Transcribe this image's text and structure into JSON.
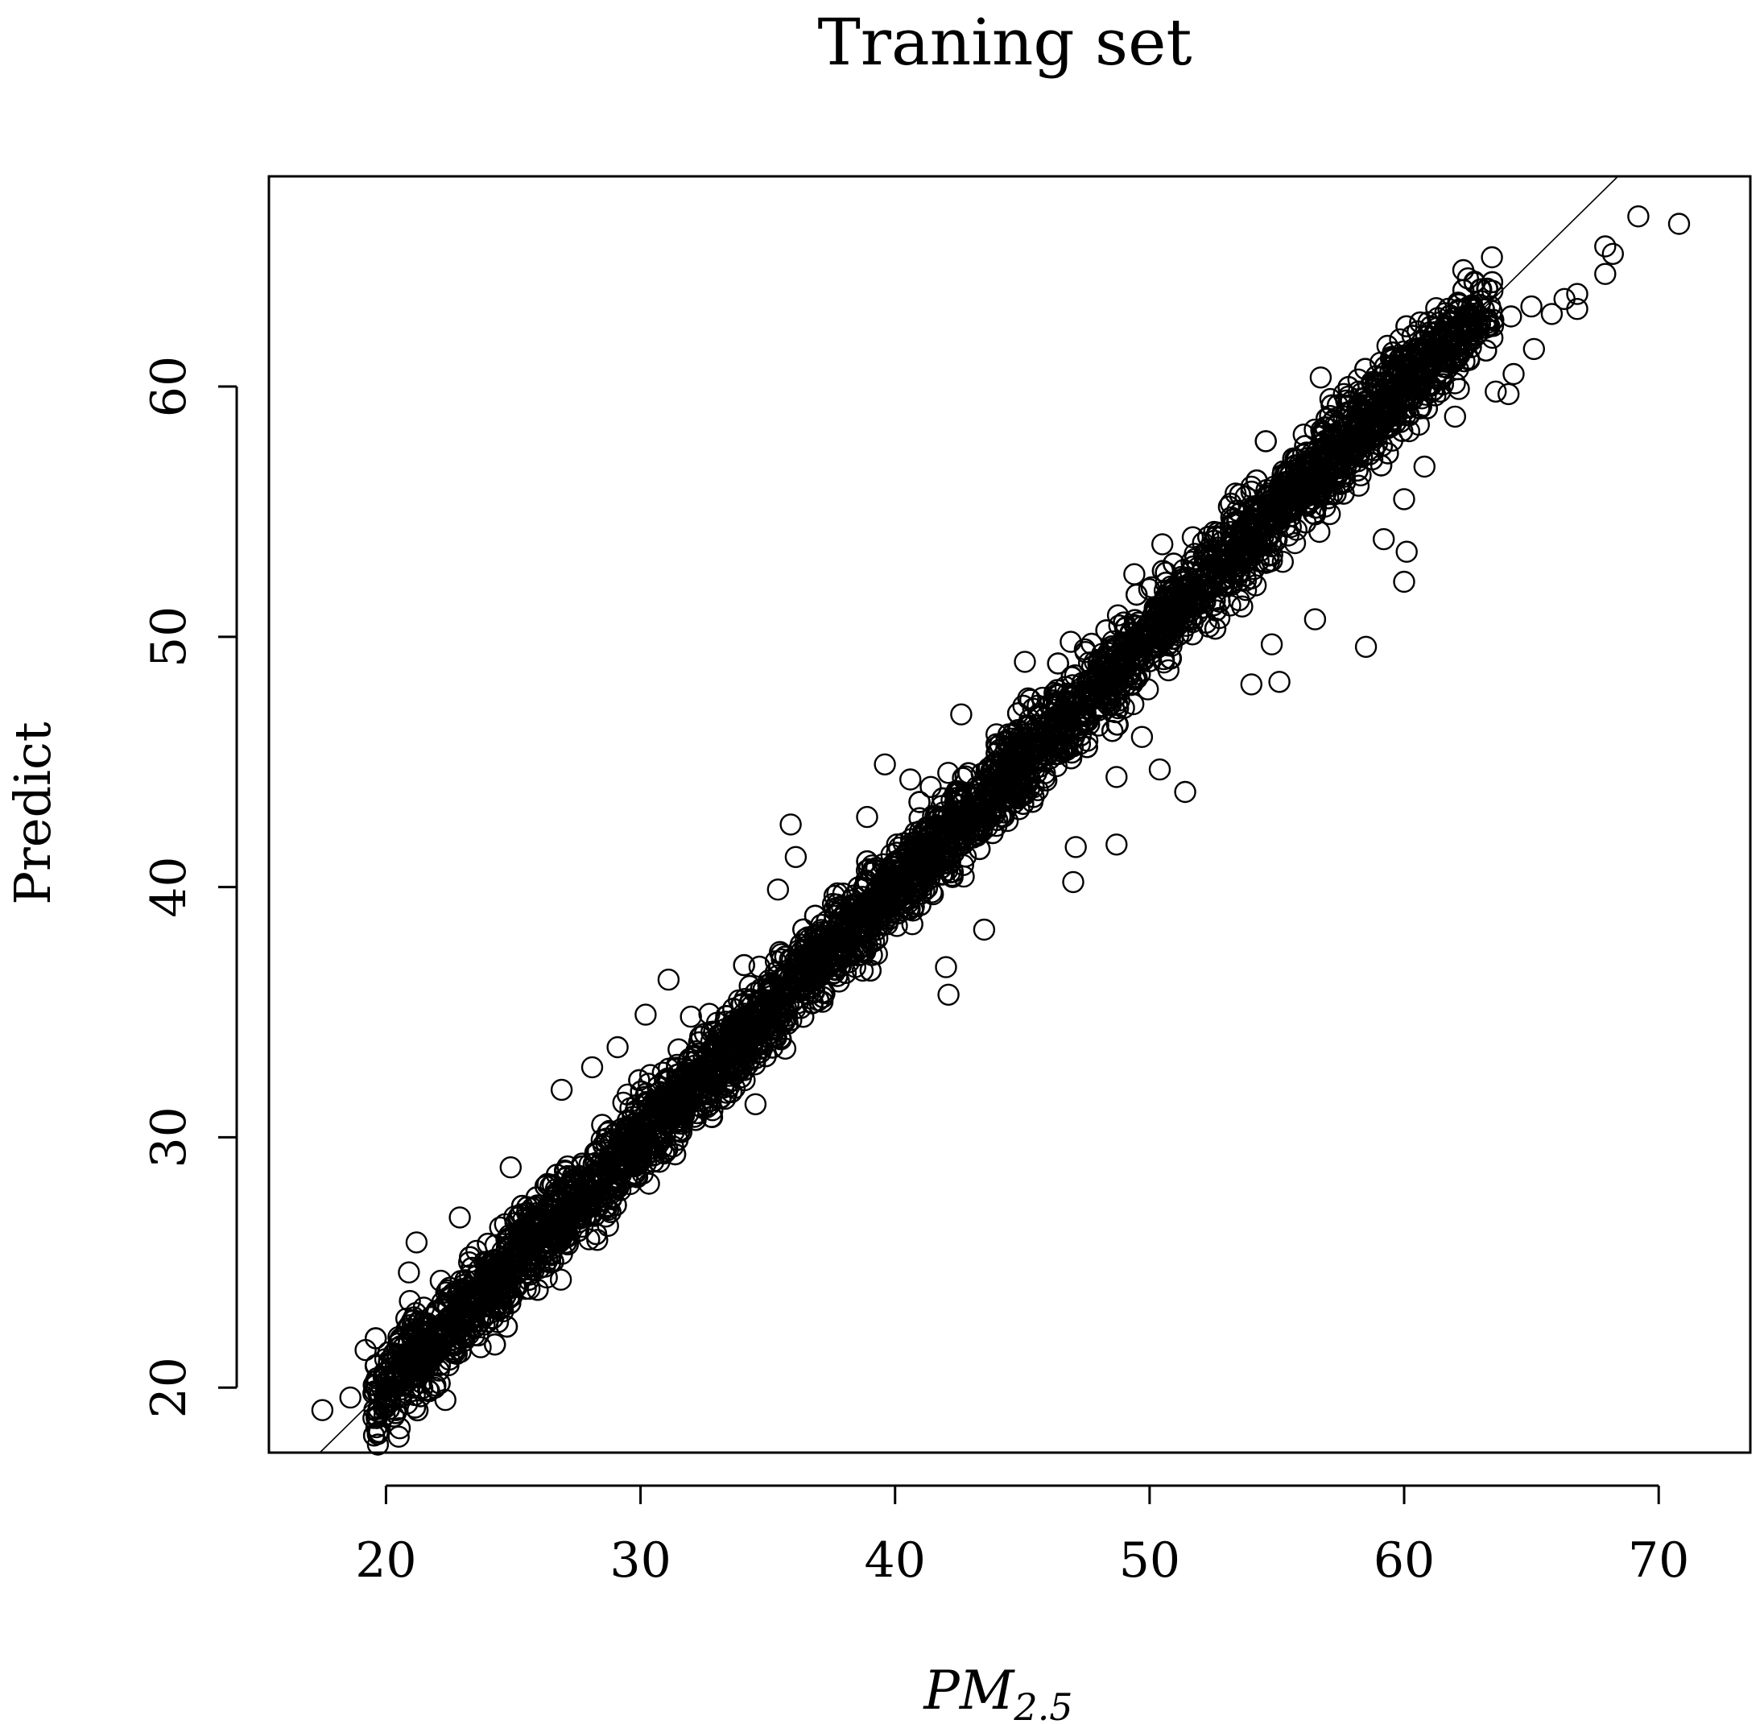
{
  "chart_data": {
    "type": "scatter",
    "title": "Traning set",
    "xlabel_main": "PM",
    "xlabel_subscript": "2.5",
    "ylabel": "Predict",
    "xlim": [
      15.4,
      73.6
    ],
    "ylim": [
      17.4,
      68.4
    ],
    "x_ticks": [
      20,
      30,
      40,
      50,
      60,
      70
    ],
    "y_ticks": [
      20,
      30,
      40,
      50,
      60
    ],
    "reference_line": {
      "type": "identity",
      "slope": 1,
      "intercept": 0
    },
    "marker": "open-circle",
    "grid": false,
    "legend": "none",
    "colors": {
      "points": "#000000",
      "line": "#000000",
      "axes": "#000000"
    },
    "core_series": {
      "description_for_generator": "dense band along y=x",
      "x_range": [
        19.5,
        63.5
      ],
      "n_points": 5200,
      "residual_sd": 0.85
    },
    "highlighted_outliers": [
      {
        "x": 17.5,
        "y": 19.1
      },
      {
        "x": 18.6,
        "y": 19.6
      },
      {
        "x": 19.2,
        "y": 21.5
      },
      {
        "x": 21.2,
        "y": 25.8
      },
      {
        "x": 20.9,
        "y": 24.6
      },
      {
        "x": 22.9,
        "y": 26.8
      },
      {
        "x": 24.9,
        "y": 28.8
      },
      {
        "x": 26.9,
        "y": 31.9
      },
      {
        "x": 28.3,
        "y": 25.9
      },
      {
        "x": 28.1,
        "y": 32.8
      },
      {
        "x": 29.1,
        "y": 33.6
      },
      {
        "x": 30.2,
        "y": 34.9
      },
      {
        "x": 31.1,
        "y": 36.3
      },
      {
        "x": 35.4,
        "y": 39.9
      },
      {
        "x": 35.9,
        "y": 42.5
      },
      {
        "x": 36.1,
        "y": 41.2
      },
      {
        "x": 38.9,
        "y": 42.8
      },
      {
        "x": 39.6,
        "y": 44.9
      },
      {
        "x": 40.6,
        "y": 44.3
      },
      {
        "x": 41.4,
        "y": 44.0
      },
      {
        "x": 42.6,
        "y": 46.9
      },
      {
        "x": 45.1,
        "y": 49.0
      },
      {
        "x": 46.9,
        "y": 49.8
      },
      {
        "x": 47.0,
        "y": 40.2
      },
      {
        "x": 47.1,
        "y": 41.6
      },
      {
        "x": 48.7,
        "y": 41.7
      },
      {
        "x": 43.5,
        "y": 38.3
      },
      {
        "x": 42.1,
        "y": 35.7
      },
      {
        "x": 42.0,
        "y": 36.8
      },
      {
        "x": 50.4,
        "y": 44.7
      },
      {
        "x": 51.4,
        "y": 43.8
      },
      {
        "x": 49.7,
        "y": 46.0
      },
      {
        "x": 48.7,
        "y": 44.4
      },
      {
        "x": 50.5,
        "y": 53.7
      },
      {
        "x": 49.4,
        "y": 52.5
      },
      {
        "x": 54.0,
        "y": 48.1
      },
      {
        "x": 55.1,
        "y": 48.2
      },
      {
        "x": 54.8,
        "y": 49.7
      },
      {
        "x": 56.5,
        "y": 50.7
      },
      {
        "x": 58.5,
        "y": 49.6
      },
      {
        "x": 60.0,
        "y": 52.2
      },
      {
        "x": 60.1,
        "y": 53.4
      },
      {
        "x": 59.2,
        "y": 53.9
      },
      {
        "x": 60.0,
        "y": 55.5
      },
      {
        "x": 60.8,
        "y": 56.8
      },
      {
        "x": 57.1,
        "y": 59.5
      },
      {
        "x": 54.0,
        "y": 56.0
      },
      {
        "x": 62.0,
        "y": 58.8
      },
      {
        "x": 63.6,
        "y": 59.8
      },
      {
        "x": 64.1,
        "y": 59.7
      },
      {
        "x": 64.3,
        "y": 60.5
      },
      {
        "x": 64.2,
        "y": 62.8
      },
      {
        "x": 65.1,
        "y": 61.5
      },
      {
        "x": 65.0,
        "y": 63.2
      },
      {
        "x": 65.8,
        "y": 62.9
      },
      {
        "x": 66.3,
        "y": 63.5
      },
      {
        "x": 66.8,
        "y": 63.7
      },
      {
        "x": 66.8,
        "y": 63.1
      },
      {
        "x": 67.9,
        "y": 64.5
      },
      {
        "x": 67.9,
        "y": 65.6
      },
      {
        "x": 68.2,
        "y": 65.3
      },
      {
        "x": 69.2,
        "y": 66.8
      },
      {
        "x": 70.8,
        "y": 66.5
      },
      {
        "x": 62.9,
        "y": 62.4
      },
      {
        "x": 61.9,
        "y": 62.6
      },
      {
        "x": 55.7,
        "y": 55.5
      }
    ]
  }
}
